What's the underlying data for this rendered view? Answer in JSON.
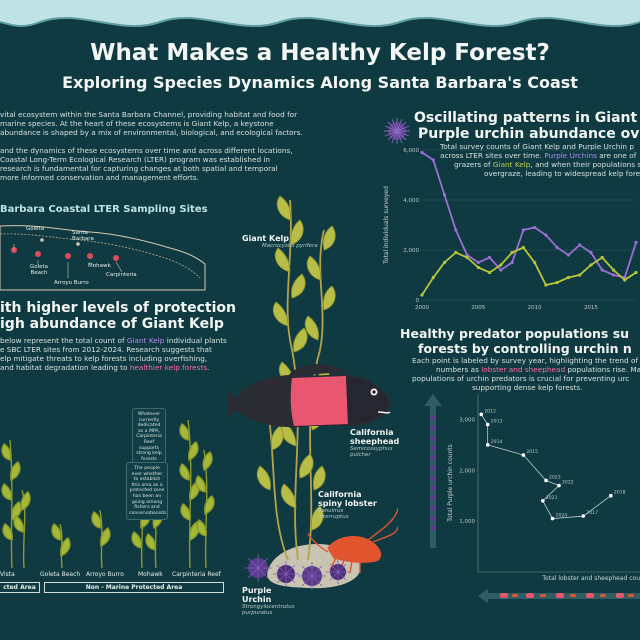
{
  "header": {
    "title": "What Makes a Healthy Kelp Forest?",
    "subtitle": "Exploring Species Dynamics Along Santa Barbara's Coast"
  },
  "intro": {
    "para1_line1": "vital ecosystem within the Santa Barbara Channel, providing habitat and food for",
    "para1_line2": "marine species. At the heart of these ecosystems is Giant Kelp, a keystone",
    "para1_line3": "abundance is shaped by a mix of environmental, biological, and ecological factors.",
    "para2_line1": "and the dynamics of these ecosystems over time and across different locations,",
    "para2_line2": "Coastal Long-Term Ecological Research (LTER) program was established in",
    "para2_line3": "research is fundamental for capturing changes at both spatial and temporal",
    "para2_line4": "more informed conservation and management efforts."
  },
  "map": {
    "title": "Barbara Coastal LTER Sampling Sites",
    "places": [
      "Goleta",
      "Santa Barbara",
      "Goleta Beach",
      "Mohawk",
      "Arroyo Burro",
      "Carpinteria"
    ]
  },
  "protection": {
    "head_line1": "ith higher levels of protection",
    "head_line2": "igh abundance of Giant Kelp",
    "text_line1_a": "below represent the total count of ",
    "text_line1_b": "Giant Kelp",
    "text_line1_c": " individual plants",
    "text_line2": "e SBC LTER sites from 2012-2024. Research suggests that",
    "text_line3": "elp mitigate threats to kelp forests including overfishing,",
    "text_line4_a": "and habitat degradation leading to ",
    "text_line4_b": "healthier kelp forests",
    "text_line4_c": ".",
    "callout1": "Whatever currently dedicated as a MPA, Carpinteria Reef supports strong kelp forests",
    "callout2": "The people ever whether to establish this area as a protected zone has been an going among fishers and conservationists",
    "sites": [
      "Vista",
      "Goleta Beach",
      "Arroyo Burro",
      "Mohawk",
      "Carpinteria Reef"
    ],
    "tag_mpa": "cted Area",
    "tag_non": "Non - Marine Protected Area"
  },
  "species": {
    "kelp_name": "Giant Kelp",
    "kelp_sci": "Macrocystis pyrifera",
    "sheephead_name_1": "California",
    "sheephead_name_2": "sheephead",
    "sheephead_sci": "Semicossyphus pulcher",
    "lobster_name_1": "California",
    "lobster_name_2": "spiny lobster",
    "lobster_sci": "Panulirus interruptus",
    "urchin_name_1": "Purple",
    "urchin_name_2": "Urchin",
    "urchin_sci": "Strongylocentrotus purpuratus"
  },
  "oscillation": {
    "head_line1": "Oscillating patterns in Giant k",
    "head_line2": "Purple urchin abundance ove",
    "text_line1": "Total survey counts of Giant Kelp and Purple Urchin p",
    "text_line2": "across LTER sites over time. ",
    "text_line2_b": "Purple Urchins",
    "text_line2_c": " are one of",
    "text_line3_a": "grazers of ",
    "text_line3_b": "Giant Kelp",
    "text_line3_c": ", and when their populations surg",
    "text_line4": "overgraze, leading to widespread kelp forest de"
  },
  "predators": {
    "head_line1": "Healthy predator populations su",
    "head_line2": "forests by controlling urchin n",
    "text_line1": "Each point is labeled by survey year, highlighting the trend of",
    "text_line2_a": "numbers as ",
    "text_line2_b": "lobster and sheephead",
    "text_line2_c": " populations rise. Maint",
    "text_line3": "populations of urchin predators is crucial for preventing urc",
    "text_line4": "supporting dense kelp forests."
  },
  "chart_data": [
    {
      "type": "line",
      "ylabel": "Total individuals surveyed",
      "x": [
        2000,
        2001,
        2002,
        2003,
        2004,
        2005,
        2006,
        2007,
        2008,
        2009,
        2010,
        2011,
        2012,
        2013,
        2014,
        2015,
        2016,
        2017,
        2018,
        2019
      ],
      "x_ticks": [
        "2000",
        "2005",
        "2010",
        "2015"
      ],
      "y_ticks": [
        "0",
        "2,000",
        "4,000",
        "6,000"
      ],
      "ylim": [
        0,
        6000
      ],
      "series": [
        {
          "name": "Purple Urchins",
          "color": "#9b6fd6",
          "values": [
            5900,
            5600,
            4200,
            2800,
            1800,
            1500,
            1700,
            1200,
            1500,
            2800,
            2900,
            2600,
            2100,
            1800,
            2200,
            1900,
            1200,
            1000,
            900,
            2300
          ]
        },
        {
          "name": "Giant Kelp",
          "color": "#b7c63a",
          "values": [
            200,
            900,
            1500,
            1900,
            1700,
            1300,
            1100,
            1400,
            1900,
            2100,
            1500,
            600,
            700,
            900,
            1000,
            1400,
            1700,
            1200,
            800,
            1100
          ]
        }
      ]
    },
    {
      "type": "line",
      "xlabel": "Total lobster and sheephead cou",
      "ylabel": "Total Purple urchin counts",
      "y_ticks": [
        "1,000",
        "2,000",
        "3,000"
      ],
      "ylim": [
        0,
        3500
      ],
      "xlim": [
        0,
        1000
      ],
      "points": [
        {
          "year": "2012",
          "x": 20,
          "y": 3100
        },
        {
          "year": "2013",
          "x": 60,
          "y": 2900
        },
        {
          "year": "2014",
          "x": 60,
          "y": 2500
        },
        {
          "year": "2015",
          "x": 280,
          "y": 2300
        },
        {
          "year": "2023",
          "x": 420,
          "y": 1800
        },
        {
          "year": "2022",
          "x": 500,
          "y": 1700
        },
        {
          "year": "2021",
          "x": 400,
          "y": 1400
        },
        {
          "year": "2024",
          "x": 460,
          "y": 1050
        },
        {
          "year": "2017",
          "x": 650,
          "y": 1100
        },
        {
          "year": "2018",
          "x": 820,
          "y": 1500
        }
      ]
    }
  ]
}
